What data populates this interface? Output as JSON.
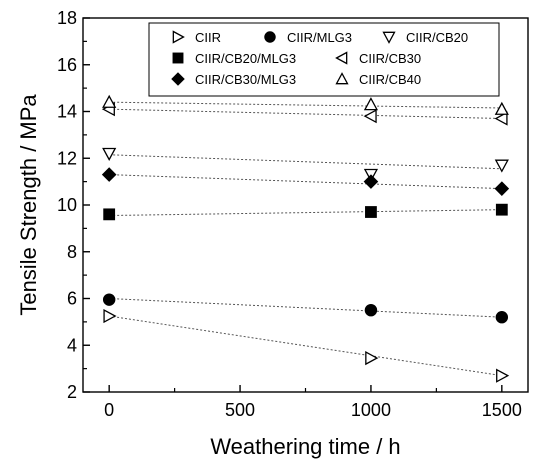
{
  "chart_data": {
    "type": "scatter",
    "title": "",
    "xlabel": "Weathering time / h",
    "ylabel": "Tensile Strength / MPa",
    "xlim": [
      -100,
      1600
    ],
    "ylim": [
      2,
      18
    ],
    "xticks": [
      0,
      500,
      1000,
      1500
    ],
    "yticks": [
      2,
      4,
      6,
      8,
      10,
      12,
      14,
      16,
      18
    ],
    "grid": false,
    "legend_position": "top",
    "series": [
      {
        "name": "CIIR",
        "marker": "triangle-right-open",
        "x": [
          0,
          1000,
          1500
        ],
        "y": [
          5.25,
          3.45,
          2.7
        ],
        "trend": [
          5.25,
          2.7
        ]
      },
      {
        "name": "CIIR/MLG3",
        "marker": "circle-filled",
        "x": [
          0,
          1000,
          1500
        ],
        "y": [
          5.95,
          5.5,
          5.2
        ],
        "trend": [
          6.0,
          5.2
        ]
      },
      {
        "name": "CIIR/CB20",
        "marker": "triangle-down-open",
        "x": [
          0,
          1000,
          1500
        ],
        "y": [
          12.2,
          11.3,
          11.7
        ],
        "trend": [
          12.15,
          11.55
        ]
      },
      {
        "name": "CIIR/CB20/MLG3",
        "marker": "square-filled",
        "x": [
          0,
          1000,
          1500
        ],
        "y": [
          9.6,
          9.7,
          9.8
        ],
        "trend": [
          9.55,
          9.8
        ]
      },
      {
        "name": "CIIR/CB30",
        "marker": "triangle-left-open",
        "x": [
          0,
          1000,
          1500
        ],
        "y": [
          14.1,
          13.8,
          13.7
        ],
        "trend": [
          14.1,
          13.7
        ]
      },
      {
        "name": "CIIR/CB30/MLG3",
        "marker": "diamond-filled",
        "x": [
          0,
          1000,
          1500
        ],
        "y": [
          11.3,
          11.0,
          10.7
        ],
        "trend": [
          11.3,
          10.7
        ]
      },
      {
        "name": "CIIR/CB40",
        "marker": "triangle-up-open",
        "x": [
          0,
          1000,
          1500
        ],
        "y": [
          14.4,
          14.3,
          14.1
        ],
        "trend": [
          14.4,
          14.15
        ]
      }
    ]
  }
}
